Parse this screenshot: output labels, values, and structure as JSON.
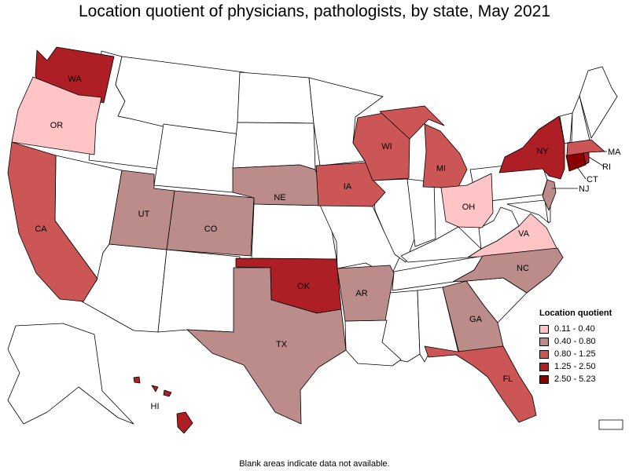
{
  "title": "Location quotient of physicians, pathologists, by state, May 2021",
  "legend": {
    "title": "Location quotient",
    "items": [
      {
        "label": "0.11 - 0.40",
        "color": "#ffc4c6"
      },
      {
        "label": "0.40 - 0.80",
        "color": "#bb8c89"
      },
      {
        "label": "0.80 - 1.25",
        "color": "#cc5555"
      },
      {
        "label": "1.25 - 2.50",
        "color": "#ad1f25"
      },
      {
        "label": "2.50 - 5.23",
        "color": "#8b0000"
      }
    ]
  },
  "footnote": "Blank areas indicate data not available.",
  "states": {
    "WA": {
      "label": "WA",
      "bin": 3
    },
    "OR": {
      "label": "OR",
      "bin": 0
    },
    "CA": {
      "label": "CA",
      "bin": 2
    },
    "UT": {
      "label": "UT",
      "bin": 1
    },
    "CO": {
      "label": "CO",
      "bin": 1
    },
    "NE": {
      "label": "NE",
      "bin": 1
    },
    "OK": {
      "label": "OK",
      "bin": 3
    },
    "TX": {
      "label": "TX",
      "bin": 1
    },
    "IA": {
      "label": "IA",
      "bin": 2
    },
    "AR": {
      "label": "AR",
      "bin": 1
    },
    "WI": {
      "label": "WI",
      "bin": 2
    },
    "MI": {
      "label": "MI",
      "bin": 2
    },
    "OH": {
      "label": "OH",
      "bin": 0
    },
    "VA": {
      "label": "VA",
      "bin": 0
    },
    "NC": {
      "label": "NC",
      "bin": 1
    },
    "GA": {
      "label": "GA",
      "bin": 1
    },
    "FL": {
      "label": "FL",
      "bin": 2
    },
    "NY": {
      "label": "NY",
      "bin": 3
    },
    "NJ": {
      "label": "NJ",
      "bin": 1
    },
    "CT": {
      "label": "CT",
      "bin": 4
    },
    "RI": {
      "label": "RI",
      "bin": 3
    },
    "MA": {
      "label": "MA",
      "bin": 2
    },
    "HI": {
      "label": "HI",
      "bin": 3
    }
  }
}
